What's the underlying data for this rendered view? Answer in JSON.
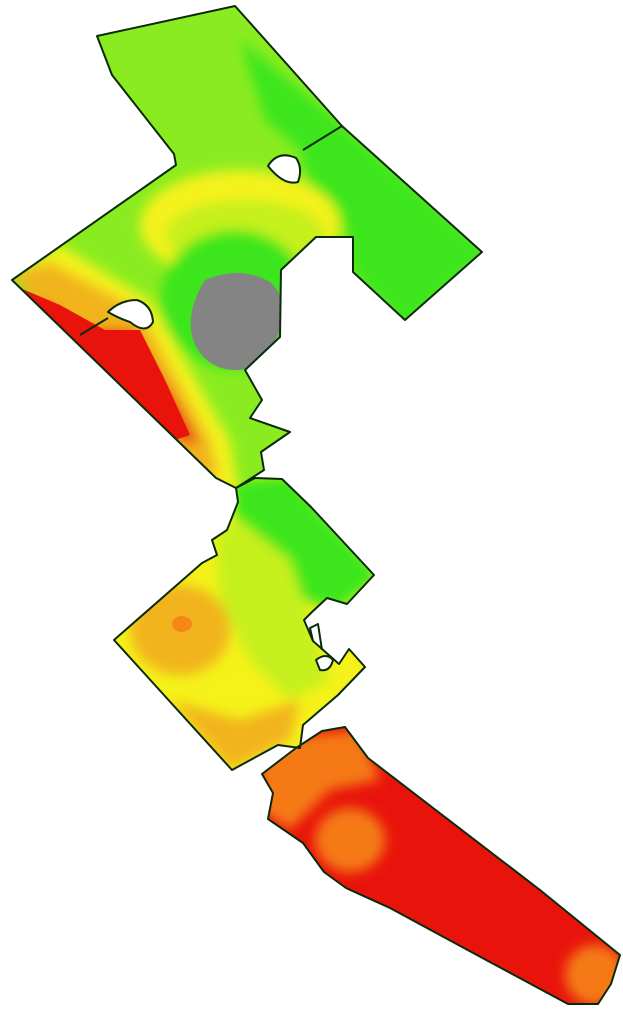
{
  "map": {
    "type": "field-yield-zone-map",
    "zone_colors": {
      "high": "#3ee61a",
      "medium_high": "#8aec20",
      "medium": "#c6f01e",
      "medium_low": "#f4f21a",
      "low": "#f2b41a",
      "lower": "#f57a18",
      "lowest": "#e8140c",
      "no_data": "#848484",
      "hole": "#ffffff",
      "boundary": "#0a2a0a"
    },
    "fields": [
      "north-field",
      "middle-field",
      "south-strip"
    ]
  }
}
